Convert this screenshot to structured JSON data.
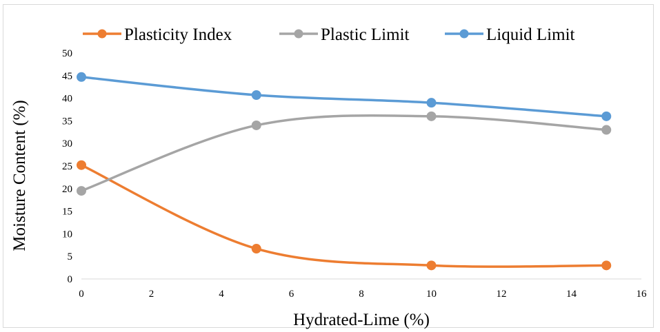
{
  "chart_data": {
    "type": "line",
    "smooth": true,
    "xlabel": "Hydrated-Lime (%)",
    "ylabel": "Moisture Content (%)",
    "xlim": [
      0,
      16
    ],
    "ylim": [
      0,
      50
    ],
    "xticks": [
      0,
      2,
      4,
      6,
      8,
      10,
      12,
      14,
      16
    ],
    "yticks": [
      0,
      5,
      10,
      15,
      20,
      25,
      30,
      35,
      40,
      45,
      50
    ],
    "grid": false,
    "legend_position": "top",
    "x": [
      0,
      5,
      10,
      15
    ],
    "series": [
      {
        "name": "Plasticity Index",
        "color": "#ED7D31",
        "values": [
          25.2,
          6.7,
          3.0,
          3.0
        ]
      },
      {
        "name": "Plastic Limit",
        "color": "#A5A5A5",
        "values": [
          19.5,
          34.0,
          36.0,
          33.0
        ]
      },
      {
        "name": "Liquid Limit",
        "color": "#5B9BD5",
        "values": [
          44.7,
          40.7,
          39.0,
          36.0
        ]
      }
    ]
  }
}
